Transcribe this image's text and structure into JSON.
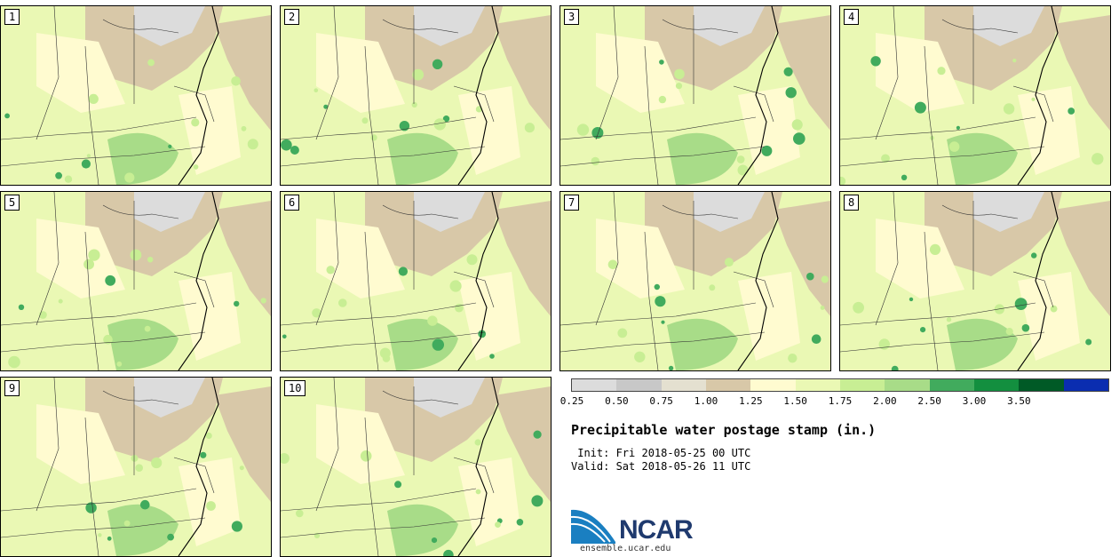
{
  "panels": [
    {
      "label": "1"
    },
    {
      "label": "2"
    },
    {
      "label": "3"
    },
    {
      "label": "4"
    },
    {
      "label": "5"
    },
    {
      "label": "6"
    },
    {
      "label": "7"
    },
    {
      "label": "8"
    },
    {
      "label": "9"
    },
    {
      "label": "10"
    }
  ],
  "colorbar": {
    "colors": [
      "#dcdcdc",
      "#c8c8c8",
      "#e4e0d0",
      "#d8c8a8",
      "#fffbd0",
      "#eaf8b4",
      "#c8ee94",
      "#a8dc88",
      "#41ab5d",
      "#138f3f",
      "#005a26",
      "#0a2db0"
    ],
    "ticks": [
      "0.25",
      "0.50",
      "0.75",
      "1.00",
      "1.25",
      "1.50",
      "1.75",
      "2.00",
      "2.50",
      "3.00",
      "3.50"
    ]
  },
  "title": "Precipitable water postage stamp (in.)",
  "init": " Init: Fri 2018-05-25 00 UTC",
  "valid": "Valid: Sat 2018-05-26 11 UTC",
  "logo": {
    "text": "NCAR",
    "url": "ensemble.ucar.edu",
    "accent": "#1a7fc1"
  }
}
